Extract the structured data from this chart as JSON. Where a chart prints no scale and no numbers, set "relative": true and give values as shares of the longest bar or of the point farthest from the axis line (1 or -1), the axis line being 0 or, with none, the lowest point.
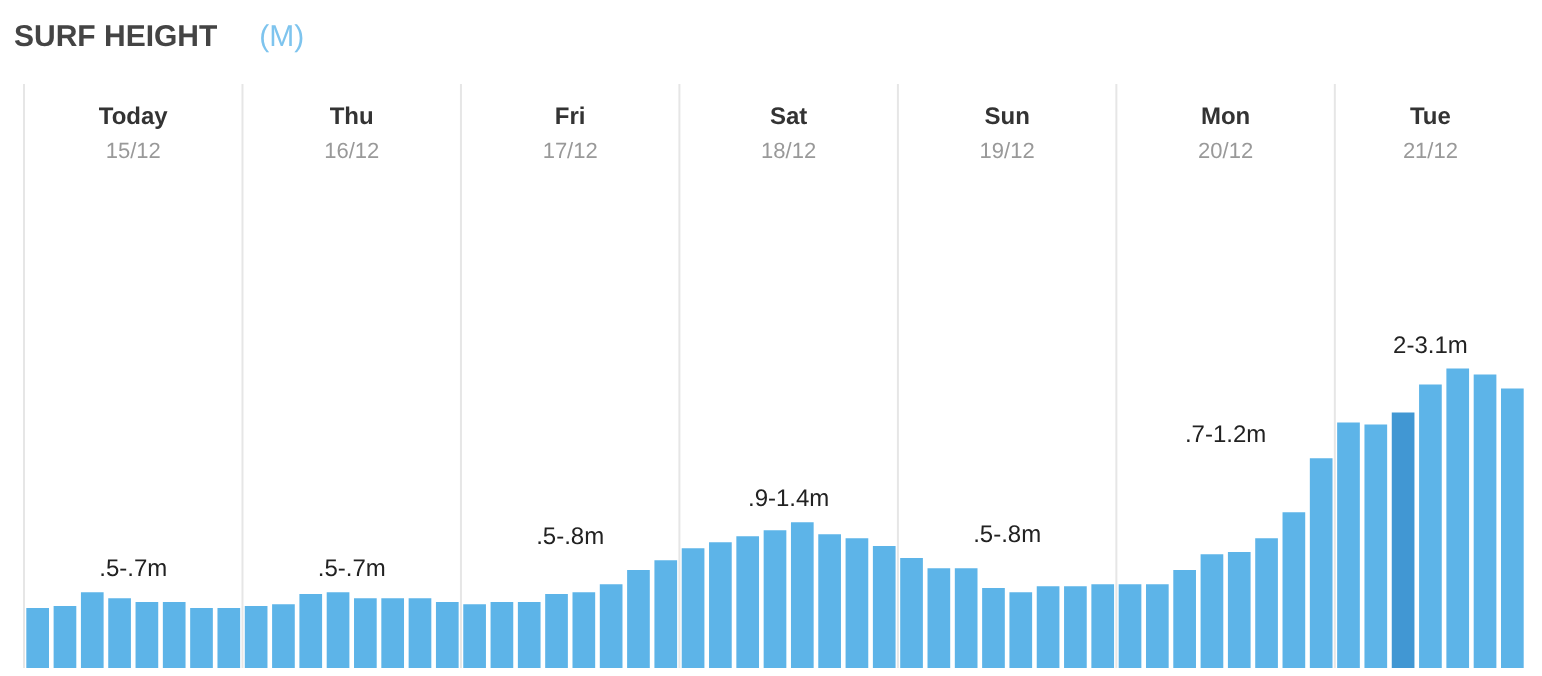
{
  "chart_data": {
    "type": "bar",
    "title": "SURF HEIGHT",
    "subtitle": "(M)",
    "relative": true,
    "categories": [
      null,
      null,
      null,
      null,
      null,
      null,
      null,
      null,
      null,
      null,
      null,
      null,
      null,
      null,
      null,
      null,
      null,
      null,
      null,
      null,
      null,
      null,
      null,
      null,
      null,
      null,
      null,
      null,
      null,
      null,
      null,
      null,
      null,
      null,
      null,
      null,
      null,
      null,
      null,
      null,
      null,
      null,
      null,
      null,
      null,
      null,
      null,
      null,
      null,
      null,
      null,
      null,
      null,
      null,
      null
    ],
    "values": [
      0.2,
      0.207,
      0.253,
      0.233,
      0.22,
      0.22,
      0.2,
      0.2,
      0.207,
      0.213,
      0.247,
      0.253,
      0.233,
      0.233,
      0.233,
      0.22,
      0.213,
      0.22,
      0.22,
      0.247,
      0.253,
      0.28,
      0.327,
      0.36,
      0.4,
      0.42,
      0.44,
      0.46,
      0.487,
      0.447,
      0.433,
      0.407,
      0.367,
      0.333,
      0.333,
      0.267,
      0.253,
      0.273,
      0.273,
      0.28,
      0.28,
      0.28,
      0.327,
      0.38,
      0.387,
      0.433,
      0.52,
      0.7,
      0.82,
      0.813,
      0.853,
      0.947,
      1,
      0.98,
      0.933
    ],
    "colors": [
      "#5db4e8",
      "#5db4e8",
      "#5db4e8",
      "#5db4e8",
      "#5db4e8",
      "#5db4e8",
      "#5db4e8",
      "#5db4e8",
      "#5db4e8",
      "#5db4e8",
      "#5db4e8",
      "#5db4e8",
      "#5db4e8",
      "#5db4e8",
      "#5db4e8",
      "#5db4e8",
      "#5db4e8",
      "#5db4e8",
      "#5db4e8",
      "#5db4e8",
      "#5db4e8",
      "#5db4e8",
      "#5db4e8",
      "#5db4e8",
      "#5db4e8",
      "#5db4e8",
      "#5db4e8",
      "#5db4e8",
      "#5db4e8",
      "#5db4e8",
      "#5db4e8",
      "#5db4e8",
      "#5db4e8",
      "#5db4e8",
      "#5db4e8",
      "#5db4e8",
      "#5db4e8",
      "#5db4e8",
      "#5db4e8",
      "#5db4e8",
      "#5db4e8",
      "#5db4e8",
      "#5db4e8",
      "#5db4e8",
      "#5db4e8",
      "#5db4e8",
      "#5db4e8",
      "#5db4e8",
      "#5db4e8",
      "#5db4e8",
      "#4197d3",
      "#5db4e8",
      "#5db4e8",
      "#5db4e8",
      "#5db4e8"
    ],
    "annotations": [
      "Today",
      "15/12",
      ".5-.7m",
      "Thu",
      "16/12",
      ".5-.7m",
      "Fri",
      "17/12",
      ".5-.8m",
      "Sat",
      "18/12",
      ".9-1.4m",
      "Sun",
      "19/12",
      ".5-.8m",
      "Mon",
      "20/12",
      ".7-1.2m",
      "Tue",
      "21/12",
      "2-3.1m"
    ]
  }
}
